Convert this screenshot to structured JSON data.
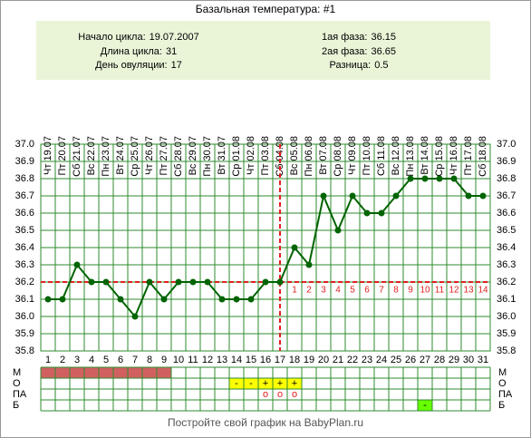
{
  "chart_data": {
    "type": "line",
    "title": "Базальная температура: #1",
    "info": {
      "start": {
        "label": "Начало цикла:",
        "value": "19.07.2007"
      },
      "length": {
        "label": "Длина цикла:",
        "value": 31
      },
      "ovulation_day": {
        "label": "День овуляции:",
        "value": 17
      },
      "phase1": {
        "label": "1ая фаза:",
        "value": 36.15
      },
      "phase2": {
        "label": "2ая фаза:",
        "value": 36.65
      },
      "difference": {
        "label": "Разница:",
        "value": 0.5
      }
    },
    "x": [
      1,
      2,
      3,
      4,
      5,
      6,
      7,
      8,
      9,
      10,
      11,
      12,
      13,
      14,
      15,
      16,
      17,
      18,
      19,
      20,
      21,
      22,
      23,
      24,
      25,
      26,
      27,
      28,
      29,
      30,
      31
    ],
    "dates": [
      "Чт 19.07",
      "Пт 20.07",
      "Сб 21.07",
      "Вс 22.07",
      "Пн 23.07",
      "Вт 24.07",
      "Ср 25.07",
      "Чт 26.07",
      "Пт 27.07",
      "Сб 28.07",
      "Вс 29.07",
      "Пн 30.07",
      "Вт 31.07",
      "Ср 01.08",
      "Чт 02.08",
      "Пт 03.08",
      "Сб 04.08",
      "Вс 05.08",
      "Пн 06.08",
      "Вт 07.08",
      "Ср 08.08",
      "Чт 09.08",
      "Пт 10.08",
      "Сб 11.08",
      "Вс 12.08",
      "Пн 13.08",
      "Вт 14.08",
      "Ср 15.08",
      "Чт 16.08",
      "Пт 17.08",
      "Сб 18.08"
    ],
    "series": [
      {
        "color": "#006400",
        "values": [
          36.1,
          36.1,
          36.3,
          36.2,
          36.2,
          36.1,
          36.0,
          36.2,
          36.1,
          36.2,
          36.2,
          36.2,
          36.1,
          36.1,
          36.1,
          36.2,
          36.2,
          36.4,
          36.3,
          36.7,
          36.5,
          36.7,
          36.6,
          36.6,
          36.7,
          36.8,
          36.8,
          36.8,
          36.8,
          36.7,
          36.7
        ]
      }
    ],
    "coverline": 36.2,
    "marker_color": "#e02020",
    "post_ovulation_counts": [
      1,
      2,
      3,
      4,
      5,
      6,
      7,
      8,
      9,
      10,
      11,
      12,
      13,
      14
    ],
    "ylim": [
      35.8,
      37.0
    ],
    "yticks": [
      {
        "value": 35.8,
        "label": "35.8"
      },
      35.9,
      {
        "value": 36.0,
        "label": "36.0"
      },
      36.1,
      36.2,
      36.3,
      36.4,
      36.5,
      36.6,
      36.7,
      36.8,
      36.9,
      {
        "value": 37.0,
        "label": "37.0"
      }
    ],
    "grid": true,
    "rows": [
      {
        "label": "М",
        "color": "#d06060",
        "days": [
          1,
          2,
          3,
          4,
          5,
          6,
          7,
          8,
          9
        ]
      },
      {
        "label": "О",
        "color": "#ffff00",
        "days": [
          14,
          15,
          16,
          17,
          18
        ],
        "marks": [
          "-",
          "-",
          "+",
          "+",
          "+"
        ]
      },
      {
        "label": "ПА",
        "days": [
          16,
          17,
          18
        ],
        "marks": [
          "o",
          "o",
          "o"
        ]
      },
      {
        "label": "Б",
        "color": "#66ff00",
        "days": [
          27
        ],
        "marks": [
          "-"
        ]
      }
    ],
    "footer": "Постройте свой график на BabyPlan.ru"
  }
}
